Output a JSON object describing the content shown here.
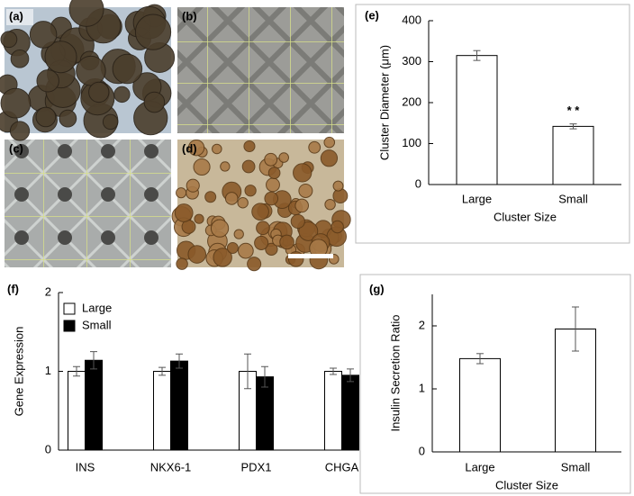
{
  "panels": [
    {
      "label": "(a)"
    },
    {
      "label": "(b)"
    },
    {
      "label": "(c)"
    },
    {
      "label": "(d)"
    }
  ],
  "chart_data": [
    {
      "type": "bar",
      "panel_label": "(e)",
      "ylabel": "Cluster Diameter (μm)",
      "xlabel": "Cluster Size",
      "categories": [
        "Large",
        "Small"
      ],
      "series": [
        {
          "color": "#ffffff",
          "values": [
            315,
            142
          ],
          "errors": [
            12,
            6
          ]
        }
      ],
      "annotations": [
        {
          "text": "* *",
          "category": 1
        }
      ],
      "ylim": [
        0,
        400
      ],
      "yticks": [
        0,
        100,
        200,
        300,
        400
      ]
    },
    {
      "type": "bar",
      "panel_label": "(f)",
      "ylabel": "Gene Expression",
      "categories": [
        "INS",
        "NKX6-1",
        "PDX1",
        "CHGA"
      ],
      "series": [
        {
          "name": "Large",
          "color": "#ffffff",
          "values": [
            1.0,
            1.0,
            1.0,
            1.0
          ],
          "errors": [
            0.06,
            0.05,
            0.22,
            0.04
          ]
        },
        {
          "name": "Small",
          "color": "#000000",
          "values": [
            1.14,
            1.13,
            0.93,
            0.95
          ],
          "errors": [
            0.11,
            0.09,
            0.13,
            0.08
          ]
        }
      ],
      "legend": "top-left",
      "ylim": [
        0,
        2
      ],
      "yticks": [
        0,
        1,
        2
      ]
    },
    {
      "type": "bar",
      "panel_label": "(g)",
      "ylabel": "Insulin Secretion Ratio",
      "xlabel": "Cluster Size",
      "categories": [
        "Large",
        "Small"
      ],
      "series": [
        {
          "color": "#ffffff",
          "values": [
            1.48,
            1.95
          ],
          "errors": [
            0.08,
            0.35
          ]
        }
      ],
      "ylim": [
        0,
        2.5
      ],
      "yticks": [
        0,
        1,
        2
      ]
    }
  ]
}
